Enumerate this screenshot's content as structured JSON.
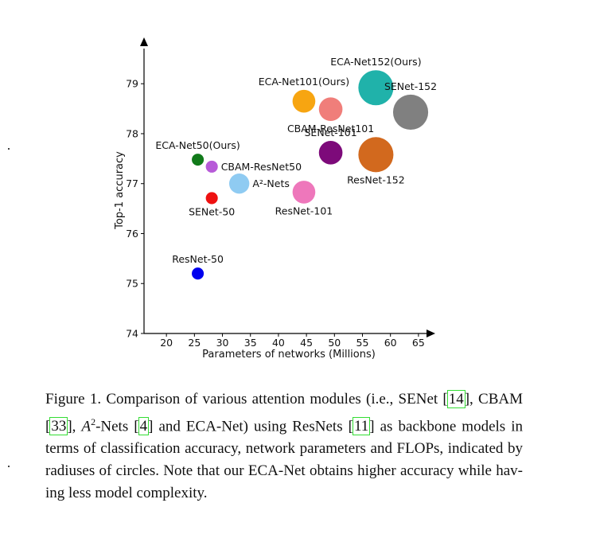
{
  "chart_data": {
    "type": "scatter",
    "title": "",
    "xlabel": "Parameters of networks (Millions)",
    "ylabel": "Top-1 accuracy",
    "xlim": [
      16,
      68
    ],
    "ylim": [
      74,
      79.8
    ],
    "xticks": [
      20,
      25,
      30,
      35,
      40,
      45,
      50,
      55,
      60,
      65
    ],
    "yticks": [
      74,
      75,
      76,
      77,
      78,
      79
    ],
    "size_encodes": "GFLOPs",
    "points": [
      {
        "label": "ResNet-50",
        "x": 25.6,
        "y": 75.2,
        "gflops": 3.86,
        "color": "#0000ee",
        "label_pos": "above"
      },
      {
        "label": "SENet-50",
        "x": 28.1,
        "y": 76.71,
        "gflops": 3.87,
        "color": "#ee1111",
        "label_pos": "below"
      },
      {
        "label": "CBAM-ResNet50",
        "x": 28.1,
        "y": 77.34,
        "gflops": 3.87,
        "color": "#b75bd8",
        "label_pos": "right"
      },
      {
        "label": "ECA-Net50(Ours)",
        "x": 25.6,
        "y": 77.48,
        "gflops": 3.86,
        "color": "#117a1a",
        "label_pos": "above"
      },
      {
        "label": "A²-Nets",
        "x": 33.0,
        "y": 77.0,
        "gflops": 6.5,
        "color": "#8fcbf2",
        "label_pos": "right"
      },
      {
        "label": "ResNet-101",
        "x": 44.55,
        "y": 76.83,
        "gflops": 7.34,
        "color": "#ee77bb",
        "label_pos": "below"
      },
      {
        "label": "SENet-101",
        "x": 49.33,
        "y": 77.62,
        "gflops": 7.6,
        "color": "#7d0a7a",
        "label_pos": "above"
      },
      {
        "label": "CBAM-ResNet101",
        "x": 49.33,
        "y": 78.49,
        "gflops": 7.6,
        "color": "#f07e7a",
        "label_pos": "below"
      },
      {
        "label": "ECA-Net101(Ours)",
        "x": 44.55,
        "y": 78.65,
        "gflops": 7.35,
        "color": "#f7a511",
        "label_pos": "above"
      },
      {
        "label": "ResNet-152",
        "x": 57.4,
        "y": 77.58,
        "gflops": 11.3,
        "color": "#d2691e",
        "label_pos": "below"
      },
      {
        "label": "ECA-Net152(Ours)",
        "x": 57.4,
        "y": 78.92,
        "gflops": 11.3,
        "color": "#20b2aa",
        "label_pos": "above"
      },
      {
        "label": "SENet-152",
        "x": 63.6,
        "y": 78.43,
        "gflops": 11.32,
        "color": "#808080",
        "label_pos": "above"
      }
    ]
  },
  "caption": {
    "prefix": "Figure 1. Comparison of various attention modules (i.e., SENet [",
    "ref_senet": "14",
    "after_senet": "], CBAM [",
    "ref_cbam": "33",
    "after_cbam": "], ",
    "a2_base": "A",
    "a2_sup": "2",
    "a2_suffix": "-Nets [",
    "ref_a2": "4",
    "after_a2": "] and ECA-Net) using ResNets [",
    "ref_resnet": "11",
    "rest": "] as backbone models in terms of classification ac­curacy, network parameters and FLOPs, indicated by radiuses of circles. Note that our ECA-Net obtains higher accuracy while hav­ing less model complexity."
  }
}
